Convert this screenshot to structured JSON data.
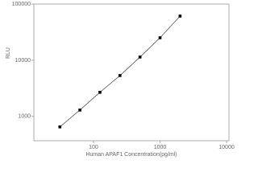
{
  "chart_data": {
    "type": "scatter",
    "log_x": true,
    "log_y": true,
    "x_label": "Human APAF1 Concentration(pg/ml)",
    "y_label": "RLU",
    "x": [
      31.25,
      62.5,
      125,
      250,
      500,
      1000,
      2000
    ],
    "series": [
      {
        "color": "#000000",
        "values": [
          652,
          1300,
          2690,
          5350,
          11400,
          25100,
          61000
        ]
      }
    ],
    "xlim": [
      12.7,
      10870
    ],
    "ylim": [
      370,
      100000
    ],
    "xticks": [
      100,
      1000,
      10000
    ],
    "yticks": [
      1000,
      10000,
      100000
    ]
  }
}
